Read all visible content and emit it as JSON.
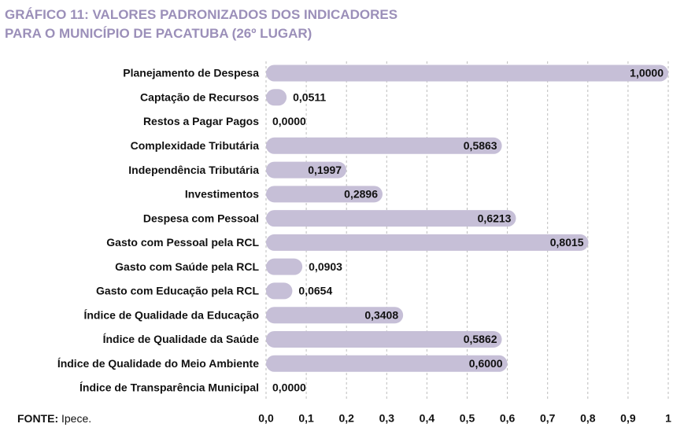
{
  "chart_data": {
    "type": "bar",
    "orientation": "horizontal",
    "title": [
      "GRÁFICO 11: VALORES PADRONIZADOS DOS INDICADORES",
      "PARA O MUNICÍPIO DE PACATUBA (26º LUGAR)"
    ],
    "source_label": "FONTE:",
    "source": "Ipece.",
    "categories": [
      "Planejamento de Despesa",
      "Captação de Recursos",
      "Restos a Pagar Pagos",
      "Complexidade Tributária",
      "Independência Tributária",
      "Investimentos",
      "Despesa com Pessoal",
      "Gasto com Pessoal pela RCL",
      "Gasto com Saúde pela RCL",
      "Gasto com Educação pela RCL",
      "Índice de Qualidade da Educação",
      "Índice de Qualidade da Saúde",
      "Índice de Qualidade do Meio Ambiente",
      "Índice de Transparência Municipal"
    ],
    "values": [
      1.0,
      0.0511,
      0.0,
      0.5863,
      0.1997,
      0.2896,
      0.6213,
      0.8015,
      0.0903,
      0.0654,
      0.3408,
      0.5862,
      0.6,
      0.0
    ],
    "value_labels": [
      "1,0000",
      "0,0511",
      "0,0000",
      "0,5863",
      "0,1997",
      "0,2896",
      "0,6213",
      "0,8015",
      "0,0903",
      "0,0654",
      "0,3408",
      "0,5862",
      "0,6000",
      "0,0000"
    ],
    "color": "#c6bfd7",
    "xlim": [
      0,
      1
    ],
    "xticks": [
      {
        "value": 0,
        "label": "0,0"
      },
      {
        "value": 0.1,
        "label": "0,1"
      },
      {
        "value": 0.2,
        "label": "0,2"
      },
      {
        "value": 0.3,
        "label": "0,3"
      },
      {
        "value": 0.4,
        "label": "0,4"
      },
      {
        "value": 0.5,
        "label": "0,5"
      },
      {
        "value": 0.6,
        "label": "0,6"
      },
      {
        "value": 0.7,
        "label": "0,7"
      },
      {
        "value": 0.8,
        "label": "0,8"
      },
      {
        "value": 0.9,
        "label": "0,9"
      },
      1
    ],
    "grid": true
  }
}
